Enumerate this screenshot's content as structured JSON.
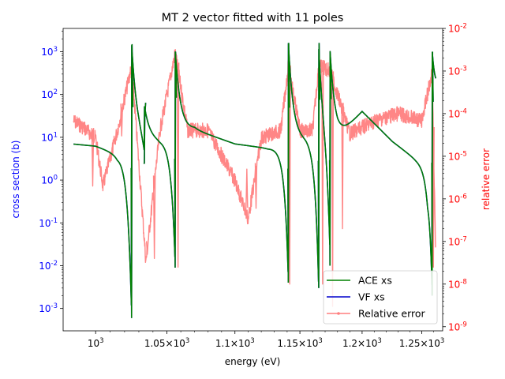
{
  "chart_data": {
    "type": "line",
    "title": "MT 2 vector fitted with 11 poles",
    "xlabel": "energy (eV)",
    "ylabel_left": "cross section (b)",
    "ylabel_right": "relative error",
    "x_scale": "log",
    "x_range": [
      978,
      1268
    ],
    "left_axis": {
      "scale": "log",
      "range": [
        0.0003,
        3500
      ],
      "tick_values": [
        0.001,
        0.01,
        0.1,
        1,
        10,
        100,
        1000
      ],
      "tick_labels": [
        "10^-3",
        "10^-2",
        "10^-1",
        "10^0",
        "10^1",
        "10^2",
        "10^3"
      ],
      "color": "#0000ff"
    },
    "right_axis": {
      "scale": "log",
      "range": [
        8e-10,
        0.01
      ],
      "tick_values": [
        1e-09,
        1e-08,
        1e-07,
        1e-06,
        1e-05,
        0.0001,
        0.001,
        0.01
      ],
      "tick_labels": [
        "10^-9",
        "10^-8",
        "10^-7",
        "10^-6",
        "10^-5",
        "10^-4",
        "10^-3",
        "10^-2"
      ],
      "color": "#ff0000"
    },
    "x_ticks": [
      {
        "value": 1000,
        "label": "10^3"
      },
      {
        "value": 1050,
        "label": "1.05×10^3"
      },
      {
        "value": 1100,
        "label": "1.1×10^3"
      },
      {
        "value": 1150,
        "label": "1.15×10^3"
      },
      {
        "value": 1200,
        "label": "1.2×10^3"
      },
      {
        "value": 1250,
        "label": "1.25×10^3"
      }
    ],
    "legend_position": "lower right",
    "resonances": [
      {
        "energy": 1025,
        "peak": 1500,
        "dip": 0.0006
      },
      {
        "energy": 1034,
        "peak": 30,
        "dip": 2.5
      },
      {
        "energy": 1056,
        "peak": 1000,
        "dip": 0.009
      },
      {
        "energy": 1141,
        "peak": 1600,
        "dip": 0.004
      },
      {
        "energy": 1165,
        "peak": 1600,
        "dip": 0.003
      },
      {
        "energy": 1174,
        "peak": 600,
        "dip": 0.01
      },
      {
        "energy": 1259,
        "peak": 1000,
        "dip": 0.002
      }
    ],
    "series": [
      {
        "name": "ACE xs",
        "color": "#008000",
        "axis": "left",
        "x": [
          985,
          1000,
          1020,
          1025,
          1028,
          1040,
          1060,
          1080,
          1100,
          1120,
          1140,
          1145,
          1160,
          1175,
          1200,
          1230,
          1255,
          1262
        ],
        "y": [
          7,
          6.2,
          3,
          0.0006,
          1500,
          15,
          30,
          9,
          7,
          5,
          3,
          1600,
          6,
          600,
          70,
          10,
          1.5,
          1000
        ]
      },
      {
        "name": "VF xs",
        "color": "#0000cc",
        "axis": "left",
        "x": [
          985,
          1000,
          1020,
          1025,
          1028,
          1040,
          1060,
          1080,
          1100,
          1120,
          1140,
          1145,
          1160,
          1175,
          1200,
          1230,
          1255,
          1262
        ],
        "y": [
          7,
          6.2,
          3,
          0.0006,
          1500,
          15,
          30,
          9,
          7,
          5,
          3,
          1600,
          6,
          600,
          70,
          10,
          1.5,
          1000
        ]
      },
      {
        "name": "Relative error",
        "color": "#ff7f7f",
        "axis": "right",
        "x": [
          985,
          992,
          1000,
          1005,
          1015,
          1025,
          1035,
          1045,
          1056,
          1065,
          1080,
          1100,
          1110,
          1120,
          1135,
          1141,
          1150,
          1160,
          1165,
          1174,
          1190,
          1210,
          1230,
          1250,
          1259,
          1262
        ],
        "y": [
          0.0001,
          7e-05,
          4e-05,
          3e-06,
          6e-05,
          0.002,
          5e-08,
          6e-05,
          0.004,
          6e-05,
          6e-05,
          4e-06,
          5e-07,
          4e-05,
          6e-05,
          0.002,
          6e-05,
          6e-05,
          0.002,
          0.0015,
          5e-05,
          0.0001,
          0.00015,
          0.0001,
          0.0015,
          5e-08
        ]
      }
    ]
  }
}
